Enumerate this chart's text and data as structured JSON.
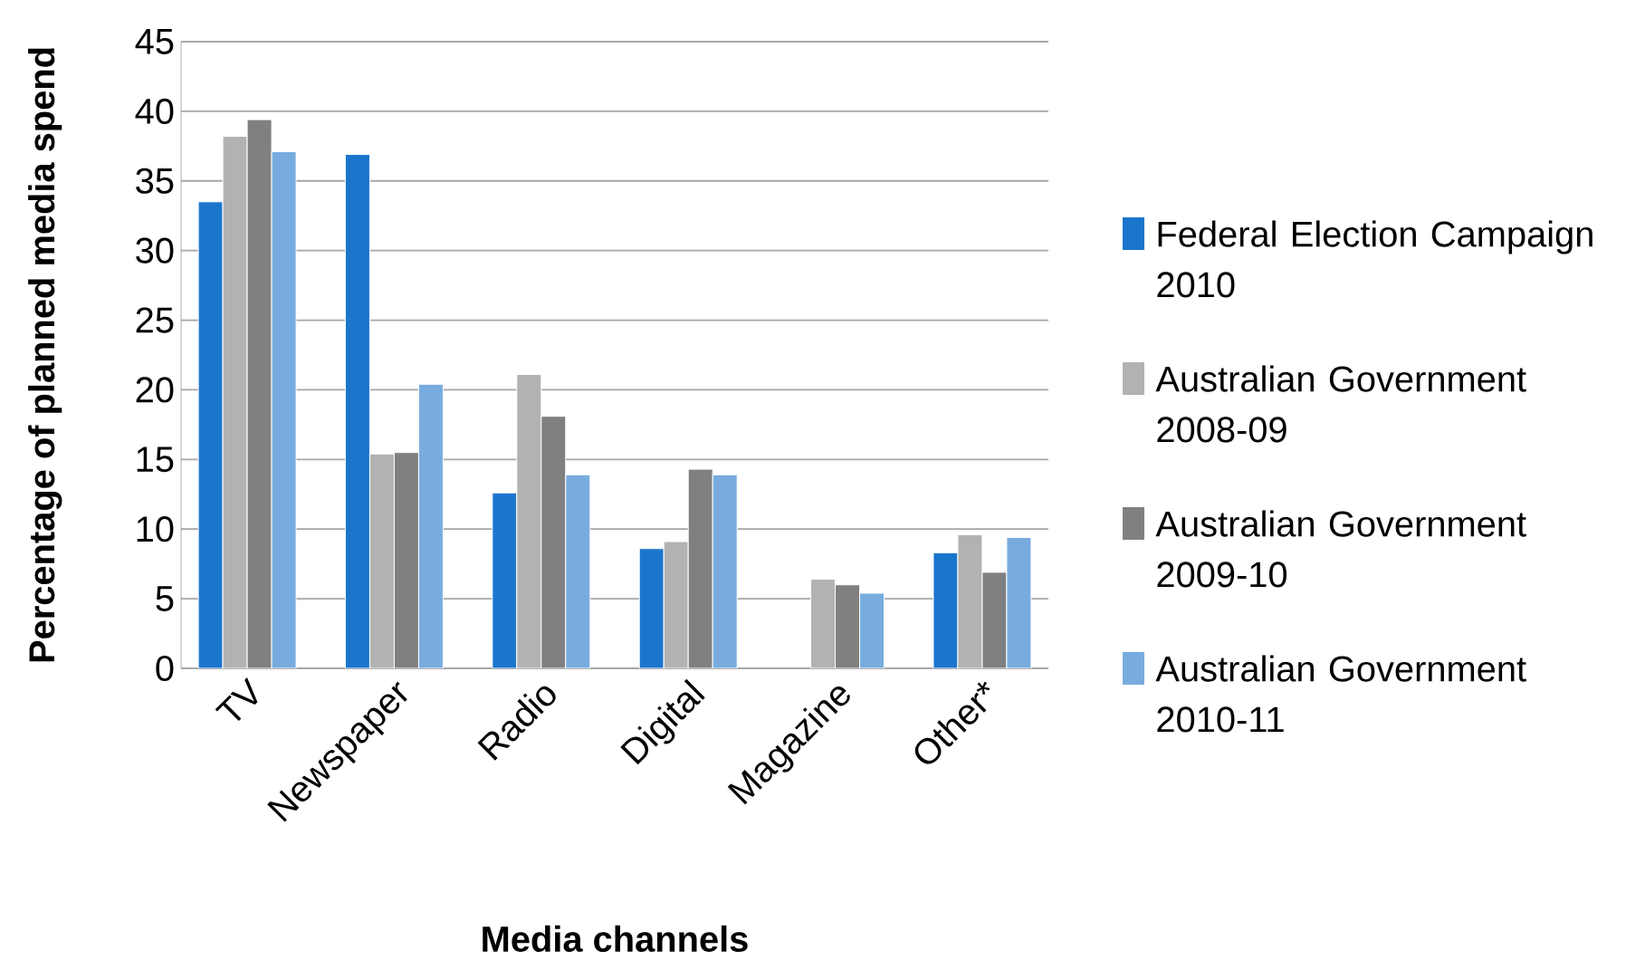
{
  "chart_data": {
    "type": "bar",
    "xlabel": "Media channels",
    "ylabel": "Percentage of planned media spend",
    "categories": [
      "TV",
      "Newspaper",
      "Radio",
      "Digital",
      "Magazine",
      "Other*"
    ],
    "series": [
      {
        "name": "Federal Election Campaign 2010",
        "color": "#1b75cd",
        "values": [
          33.5,
          36.9,
          12.6,
          8.6,
          null,
          8.3
        ]
      },
      {
        "name": "Australian Government 2008-09",
        "color": "#b2b2b2",
        "values": [
          38.2,
          15.4,
          21.1,
          9.1,
          6.4,
          9.6
        ]
      },
      {
        "name": "Australian Government 2009-10",
        "color": "#808080",
        "values": [
          39.4,
          15.5,
          18.1,
          14.3,
          6.0,
          6.9
        ]
      },
      {
        "name": "Australian Government 2010-11",
        "color": "#78acdf",
        "values": [
          37.1,
          20.4,
          13.9,
          13.9,
          5.4,
          9.4
        ]
      }
    ],
    "ylim": [
      0,
      45
    ],
    "yticks": [
      0,
      5,
      10,
      15,
      20,
      25,
      30,
      35,
      40,
      45
    ],
    "grid": "y",
    "legend": "right"
  }
}
